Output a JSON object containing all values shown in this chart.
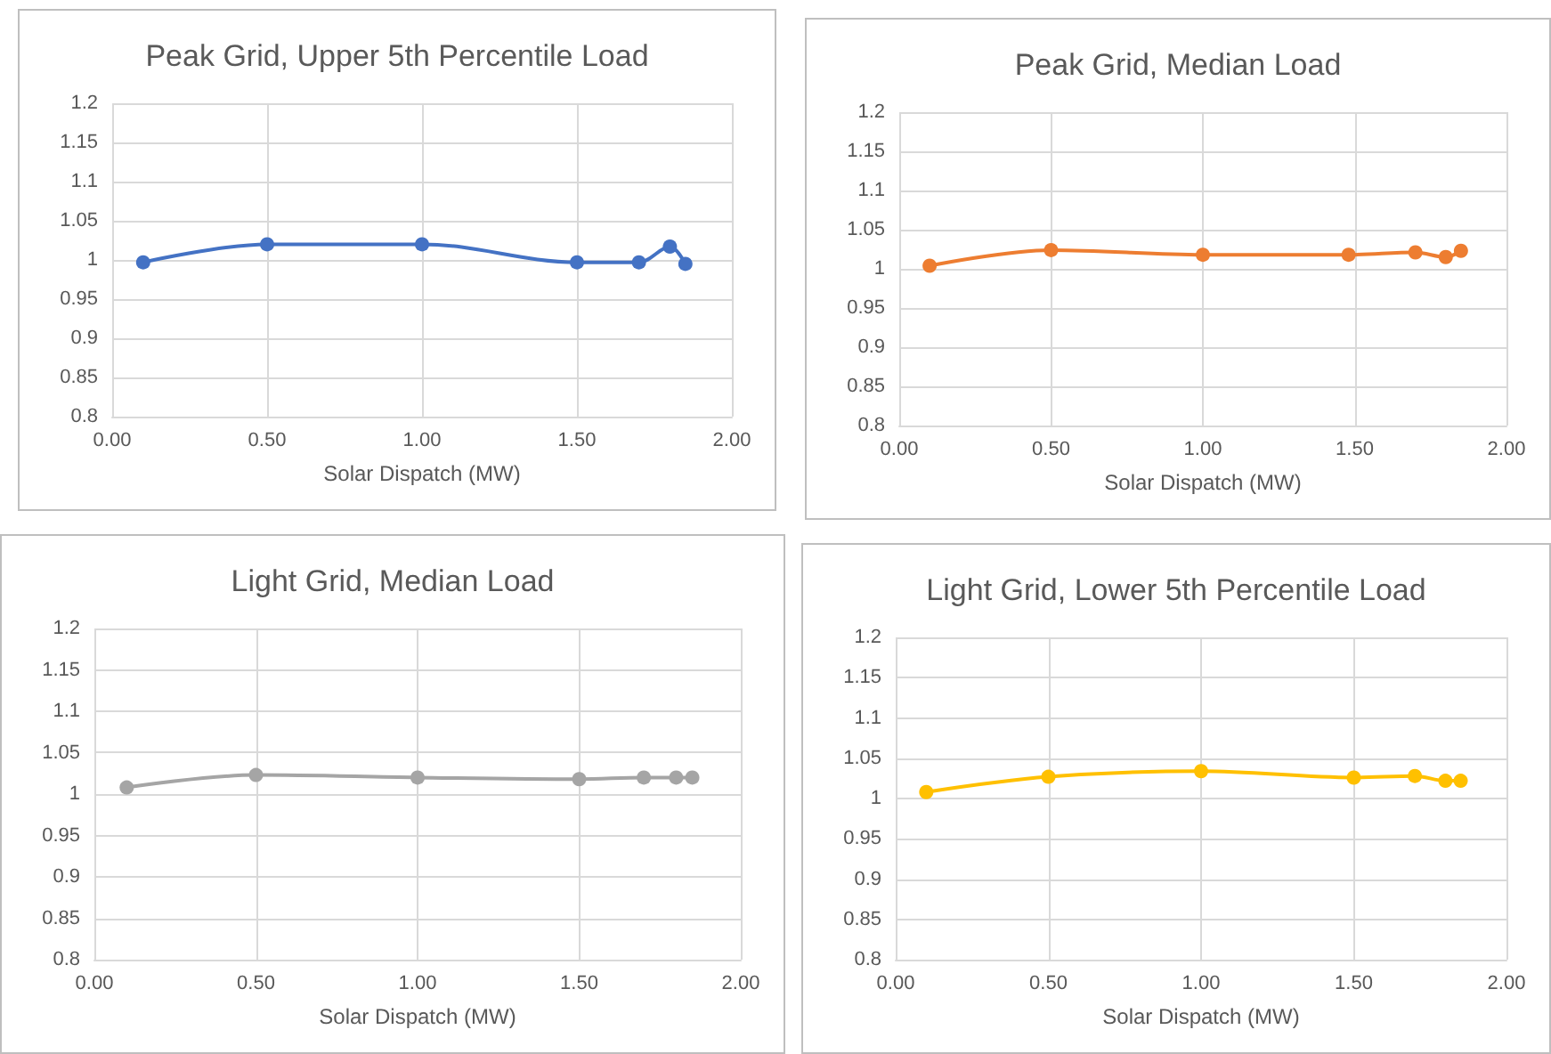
{
  "chart_data": [
    {
      "type": "line",
      "title": "Peak Grid, Upper 5th Percentile Load",
      "xlabel": "Solar Dispatch (MW)",
      "x": [
        0.1,
        0.5,
        1.0,
        1.5,
        1.7,
        1.8,
        1.85
      ],
      "series": [
        {
          "color": "#4472c4",
          "values": [
            0.997,
            1.02,
            1.02,
            0.997,
            0.997,
            1.017,
            0.995
          ]
        }
      ],
      "xlim": [
        0,
        2
      ],
      "xticks": [
        {
          "value": 0,
          "label": "0.00"
        },
        {
          "value": 0.5,
          "label": "0.50"
        },
        {
          "value": 1,
          "label": "1.00"
        },
        {
          "value": 1.5,
          "label": "1.50"
        },
        {
          "value": 2,
          "label": "2.00"
        }
      ],
      "ylim": [
        0.8,
        1.2
      ],
      "yticks": [
        0.8,
        0.85,
        0.9,
        0.95,
        1,
        1.05,
        1.1,
        1.15,
        1.2
      ],
      "grid": true,
      "marker": "circle"
    },
    {
      "type": "line",
      "title": "Peak Grid, Median Load",
      "xlabel": "Solar Dispatch (MW)",
      "x": [
        0.1,
        0.5,
        1.0,
        1.48,
        1.7,
        1.8,
        1.85
      ],
      "series": [
        {
          "color": "#ed7d31",
          "values": [
            1.004,
            1.024,
            1.018,
            1.018,
            1.021,
            1.015,
            1.023
          ]
        }
      ],
      "xlim": [
        0,
        2
      ],
      "xticks": [
        {
          "value": 0,
          "label": "0.00"
        },
        {
          "value": 0.5,
          "label": "0.50"
        },
        {
          "value": 1,
          "label": "1.00"
        },
        {
          "value": 1.5,
          "label": "1.50"
        },
        {
          "value": 2,
          "label": "2.00"
        }
      ],
      "ylim": [
        0.8,
        1.2
      ],
      "yticks": [
        0.8,
        0.85,
        0.9,
        0.95,
        1,
        1.05,
        1.1,
        1.15,
        1.2
      ],
      "grid": true,
      "marker": "circle"
    },
    {
      "type": "line",
      "title": "Light Grid, Median Load",
      "xlabel": "Solar Dispatch (MW)",
      "x": [
        0.1,
        0.5,
        1.0,
        1.5,
        1.7,
        1.8,
        1.85
      ],
      "series": [
        {
          "color": "#a5a5a5",
          "values": [
            1.008,
            1.023,
            1.02,
            1.018,
            1.02,
            1.02,
            1.02
          ]
        }
      ],
      "xlim": [
        0,
        2
      ],
      "xticks": [
        {
          "value": 0,
          "label": "0.00"
        },
        {
          "value": 0.5,
          "label": "0.50"
        },
        {
          "value": 1,
          "label": "1.00"
        },
        {
          "value": 1.5,
          "label": "1.50"
        },
        {
          "value": 2,
          "label": "2.00"
        }
      ],
      "ylim": [
        0.8,
        1.2
      ],
      "yticks": [
        0.8,
        0.85,
        0.9,
        0.95,
        1,
        1.05,
        1.1,
        1.15,
        1.2
      ],
      "grid": true,
      "marker": "circle"
    },
    {
      "type": "line",
      "title": "Light Grid, Lower 5th Percentile Load",
      "xlabel": "Solar Dispatch (MW)",
      "x": [
        0.1,
        0.5,
        1.0,
        1.5,
        1.7,
        1.8,
        1.85
      ],
      "series": [
        {
          "color": "#ffc000",
          "values": [
            1.008,
            1.027,
            1.034,
            1.026,
            1.028,
            1.022,
            1.022
          ]
        }
      ],
      "xlim": [
        0,
        2
      ],
      "xticks": [
        {
          "value": 0,
          "label": "0.00"
        },
        {
          "value": 0.5,
          "label": "0.50"
        },
        {
          "value": 1,
          "label": "1.00"
        },
        {
          "value": 1.5,
          "label": "1.50"
        },
        {
          "value": 2,
          "label": "2.00"
        }
      ],
      "ylim": [
        0.8,
        1.2
      ],
      "yticks": [
        0.8,
        0.85,
        0.9,
        0.95,
        1,
        1.05,
        1.1,
        1.15,
        1.2
      ],
      "grid": true,
      "marker": "circle"
    }
  ]
}
